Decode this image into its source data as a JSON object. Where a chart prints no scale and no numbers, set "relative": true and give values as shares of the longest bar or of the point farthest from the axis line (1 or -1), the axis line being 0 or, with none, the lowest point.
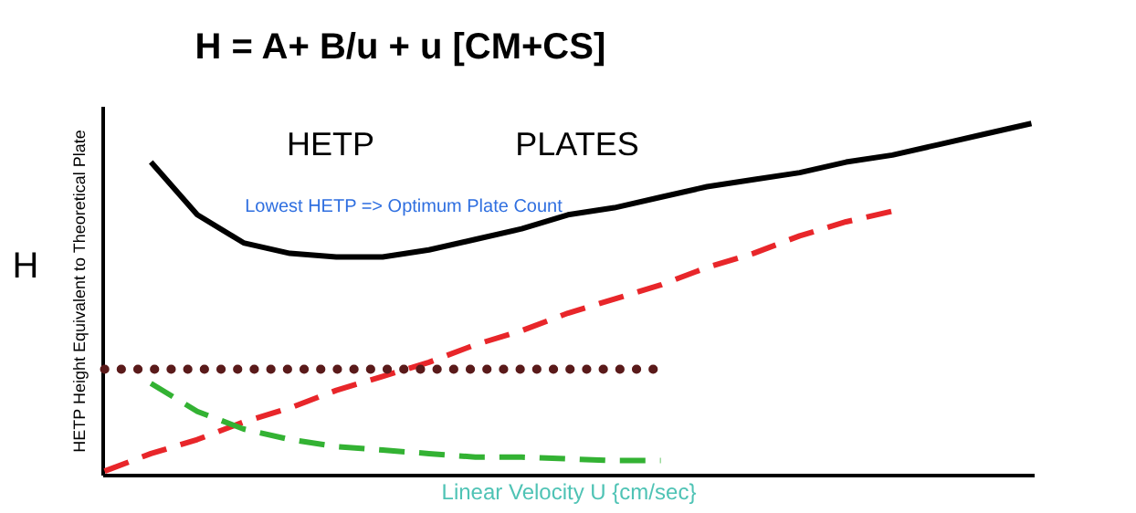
{
  "chart_data": {
    "type": "line",
    "title": "H = A+ B/u + u [CM+CS]",
    "xlabel": "Linear Velocity U {cm/sec}",
    "ylabel": "HETP     Height Equivalent to Theoretical Plate",
    "relative": true,
    "grid": false,
    "marker": "none",
    "categories": [
      null,
      null,
      null,
      null,
      null,
      null,
      null,
      null,
      null,
      null,
      null,
      null,
      null,
      null,
      null,
      null,
      null,
      null,
      null,
      null,
      null
    ],
    "series": [
      {
        "color": "#000000",
        "line_style": "solid",
        "values": [
          null,
          0.89,
          0.74,
          0.66,
          0.63,
          0.62,
          0.62,
          0.64,
          0.67,
          0.7,
          0.74,
          0.76,
          0.79,
          0.82,
          0.84,
          0.86,
          0.89,
          0.91,
          0.94,
          0.97,
          1.0
        ]
      },
      {
        "color": "#e8262a",
        "line_style": "dashed",
        "values": [
          0.01,
          0.06,
          0.1,
          0.15,
          0.19,
          0.24,
          0.28,
          0.32,
          0.37,
          0.41,
          0.46,
          0.5,
          0.54,
          0.59,
          0.63,
          0.68,
          0.72,
          0.75,
          null,
          null,
          null
        ]
      },
      {
        "color": "#5a1a1a",
        "line_style": "dotted",
        "values": [
          0.3,
          0.3,
          0.3,
          0.3,
          0.3,
          0.3,
          0.3,
          0.3,
          0.3,
          0.3,
          0.3,
          0.3,
          0.3,
          null,
          null,
          null,
          null,
          null,
          null,
          null,
          null
        ]
      },
      {
        "color": "#33b233",
        "line_style": "dashed",
        "values": [
          null,
          0.26,
          0.18,
          0.13,
          0.1,
          0.08,
          0.07,
          0.06,
          0.05,
          0.05,
          0.045,
          0.04,
          0.04,
          null,
          null,
          null,
          null,
          null,
          null,
          null,
          null
        ]
      }
    ],
    "annotations": [
      "H",
      "HETP",
      "PLATES",
      "Lowest HETP => Optimum Plate Count"
    ]
  }
}
